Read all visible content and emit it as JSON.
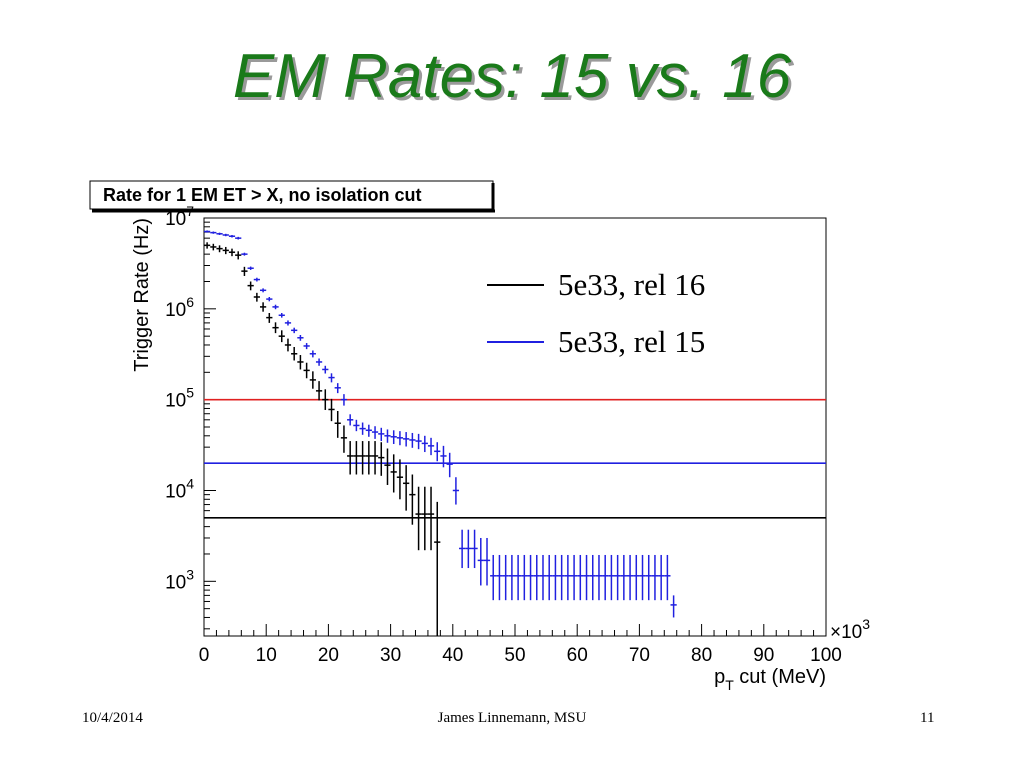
{
  "slide": {
    "title": "EM Rates: 15 vs. 16",
    "footer_date": "10/4/2014",
    "footer_author": "James Linnemann, MSU",
    "footer_page": "11"
  },
  "chart_data": {
    "type": "scatter",
    "title": "Rate for 1 EM ET > X, no isolation cut",
    "xlabel": "p_T cut (MeV)",
    "x_multiplier": "×10³",
    "ylabel": "Trigger Rate (Hz)",
    "x_unit_scale": 1000,
    "xlim": [
      0,
      100
    ],
    "ylim": [
      250,
      10000000
    ],
    "y_scale": "log",
    "x_ticks": [
      0,
      10,
      20,
      30,
      40,
      50,
      60,
      70,
      80,
      90,
      100
    ],
    "y_ticks": [
      {
        "value": 1000,
        "base": "10",
        "exp": "3"
      },
      {
        "value": 10000,
        "base": "10",
        "exp": "4"
      },
      {
        "value": 100000,
        "base": "10",
        "exp": "5"
      },
      {
        "value": 1000000,
        "base": "10",
        "exp": "6"
      },
      {
        "value": 10000000,
        "base": "10",
        "exp": "7"
      }
    ],
    "legend_position": "top-right",
    "reference_lines": [
      {
        "y": 100000,
        "color": "#e02020"
      },
      {
        "y": 20000,
        "color": "#2020e0"
      },
      {
        "y": 5000,
        "color": "#000000"
      }
    ],
    "series": [
      {
        "name": "5e33, rel 16",
        "color": "#000000",
        "points": [
          [
            0.5,
            5000000,
            5400000,
            4600000
          ],
          [
            1.5,
            4800000,
            5200000,
            4400000
          ],
          [
            2.5,
            4600000,
            5000000,
            4200000
          ],
          [
            3.5,
            4400000,
            4800000,
            4000000
          ],
          [
            4.5,
            4200000,
            4600000,
            3800000
          ],
          [
            5.5,
            3900000,
            4300000,
            3500000
          ],
          [
            6.5,
            2600000,
            2900000,
            2300000
          ],
          [
            7.5,
            1800000,
            2000000,
            1600000
          ],
          [
            8.5,
            1350000,
            1500000,
            1200000
          ],
          [
            9.5,
            1050000,
            1180000,
            930000
          ],
          [
            10.5,
            800000,
            900000,
            700000
          ],
          [
            11.5,
            620000,
            710000,
            540000
          ],
          [
            12.5,
            500000,
            580000,
            430000
          ],
          [
            13.5,
            400000,
            470000,
            340000
          ],
          [
            14.5,
            320000,
            380000,
            270000
          ],
          [
            15.5,
            260000,
            310000,
            215000
          ],
          [
            16.5,
            210000,
            255000,
            172000
          ],
          [
            17.5,
            165000,
            205000,
            132000
          ],
          [
            18.5,
            125000,
            160000,
            98000
          ],
          [
            19.5,
            100000,
            130000,
            77000
          ],
          [
            20.5,
            78000,
            102000,
            58000
          ],
          [
            21.5,
            55000,
            75000,
            38000
          ],
          [
            22.5,
            38000,
            52000,
            26000
          ],
          [
            23.5,
            24000,
            35000,
            15000
          ],
          [
            24.5,
            24000,
            35000,
            15000
          ],
          [
            25.5,
            24000,
            35000,
            15000
          ],
          [
            26.5,
            24000,
            35000,
            15000
          ],
          [
            27.5,
            24000,
            35000,
            15000
          ],
          [
            28.5,
            23000,
            34000,
            14500
          ],
          [
            29.5,
            19000,
            29000,
            11500
          ],
          [
            30.5,
            16000,
            25000,
            9500
          ],
          [
            31.5,
            14000,
            22000,
            8000
          ],
          [
            32.5,
            12000,
            19000,
            6000
          ],
          [
            33.5,
            9000,
            15000,
            4200
          ],
          [
            34.5,
            5500,
            11000,
            2200
          ],
          [
            35.5,
            5500,
            11000,
            2200
          ],
          [
            36.5,
            5500,
            11000,
            2200
          ],
          [
            37.5,
            2700,
            7500,
            250
          ]
        ]
      },
      {
        "name": "5e33, rel 15",
        "color": "#2020e0",
        "points": [
          [
            0.5,
            7100000,
            7300000,
            6900000
          ],
          [
            1.5,
            6900000,
            7100000,
            6700000
          ],
          [
            2.5,
            6700000,
            6900000,
            6500000
          ],
          [
            3.5,
            6500000,
            6700000,
            6300000
          ],
          [
            4.5,
            6300000,
            6500000,
            6100000
          ],
          [
            5.5,
            6000000,
            6200000,
            5800000
          ],
          [
            6.5,
            4000000,
            4150000,
            3850000
          ],
          [
            7.5,
            2800000,
            2920000,
            2680000
          ],
          [
            8.5,
            2100000,
            2200000,
            2000000
          ],
          [
            9.5,
            1600000,
            1680000,
            1520000
          ],
          [
            10.5,
            1280000,
            1350000,
            1210000
          ],
          [
            11.5,
            1050000,
            1110000,
            990000
          ],
          [
            12.5,
            850000,
            900000,
            800000
          ],
          [
            13.5,
            700000,
            745000,
            655000
          ],
          [
            14.5,
            580000,
            620000,
            540000
          ],
          [
            15.5,
            480000,
            515000,
            445000
          ],
          [
            16.5,
            390000,
            420000,
            360000
          ],
          [
            17.5,
            320000,
            348000,
            292000
          ],
          [
            18.5,
            260000,
            284000,
            236000
          ],
          [
            19.5,
            215000,
            236000,
            194000
          ],
          [
            20.5,
            175000,
            195000,
            155000
          ],
          [
            21.5,
            135000,
            152000,
            118000
          ],
          [
            22.5,
            100000,
            115000,
            86000
          ],
          [
            23.5,
            60000,
            69000,
            52000
          ],
          [
            24.5,
            52000,
            60000,
            45000
          ],
          [
            25.5,
            48000,
            56000,
            41000
          ],
          [
            26.5,
            46000,
            53000,
            39000
          ],
          [
            27.5,
            44000,
            51000,
            37000
          ],
          [
            28.5,
            42000,
            49000,
            35000
          ],
          [
            29.5,
            40000,
            47000,
            33500
          ],
          [
            30.5,
            39000,
            46000,
            32500
          ],
          [
            31.5,
            38000,
            45000,
            31500
          ],
          [
            32.5,
            37000,
            44000,
            30500
          ],
          [
            33.5,
            36000,
            43000,
            29500
          ],
          [
            34.5,
            35000,
            42000,
            28500
          ],
          [
            35.5,
            33000,
            40000,
            26500
          ],
          [
            36.5,
            31000,
            38000,
            24500
          ],
          [
            37.5,
            27000,
            34000,
            21000
          ],
          [
            38.5,
            24000,
            31000,
            18000
          ],
          [
            39.5,
            19500,
            26000,
            14000
          ],
          [
            40.5,
            10000,
            14000,
            7000
          ],
          [
            41.5,
            2300,
            3700,
            1400
          ],
          [
            42.5,
            2300,
            3700,
            1400
          ],
          [
            43.5,
            2300,
            3700,
            1400
          ],
          [
            44.5,
            1700,
            3000,
            900
          ],
          [
            45.5,
            1700,
            3000,
            900
          ],
          [
            46.5,
            1150,
            1950,
            620
          ],
          [
            47.5,
            1150,
            1950,
            620
          ],
          [
            48.5,
            1150,
            1950,
            620
          ],
          [
            49.5,
            1150,
            1950,
            620
          ],
          [
            50.5,
            1150,
            1950,
            620
          ],
          [
            51.5,
            1150,
            1950,
            620
          ],
          [
            52.5,
            1150,
            1950,
            620
          ],
          [
            53.5,
            1150,
            1950,
            620
          ],
          [
            54.5,
            1150,
            1950,
            620
          ],
          [
            55.5,
            1150,
            1950,
            620
          ],
          [
            56.5,
            1150,
            1950,
            620
          ],
          [
            57.5,
            1150,
            1950,
            620
          ],
          [
            58.5,
            1150,
            1950,
            620
          ],
          [
            59.5,
            1150,
            1950,
            620
          ],
          [
            60.5,
            1150,
            1950,
            620
          ],
          [
            61.5,
            1150,
            1950,
            620
          ],
          [
            62.5,
            1150,
            1950,
            620
          ],
          [
            63.5,
            1150,
            1950,
            620
          ],
          [
            64.5,
            1150,
            1950,
            620
          ],
          [
            65.5,
            1150,
            1950,
            620
          ],
          [
            66.5,
            1150,
            1950,
            620
          ],
          [
            67.5,
            1150,
            1950,
            620
          ],
          [
            68.5,
            1150,
            1950,
            620
          ],
          [
            69.5,
            1150,
            1950,
            620
          ],
          [
            70.5,
            1150,
            1950,
            620
          ],
          [
            71.5,
            1150,
            1950,
            620
          ],
          [
            72.5,
            1150,
            1950,
            620
          ],
          [
            73.5,
            1150,
            1950,
            620
          ],
          [
            74.5,
            1150,
            1950,
            620
          ],
          [
            75.5,
            550,
            700,
            400
          ]
        ]
      }
    ]
  }
}
